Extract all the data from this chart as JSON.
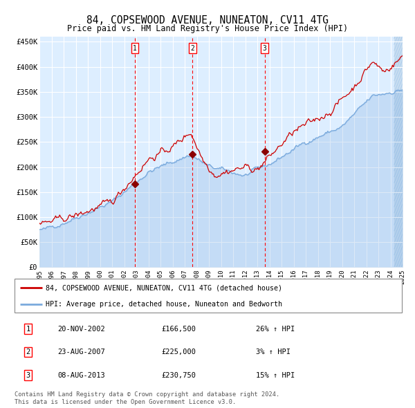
{
  "title": "84, COPSEWOOD AVENUE, NUNEATON, CV11 4TG",
  "subtitle": "Price paid vs. HM Land Registry's House Price Index (HPI)",
  "legend_line1": "84, COPSEWOOD AVENUE, NUNEATON, CV11 4TG (detached house)",
  "legend_line2": "HPI: Average price, detached house, Nuneaton and Bedworth",
  "footnote1": "Contains HM Land Registry data © Crown copyright and database right 2024.",
  "footnote2": "This data is licensed under the Open Government Licence v3.0.",
  "hpi_color": "#7aaadd",
  "price_color": "#cc0000",
  "background_plot": "#ddeeff",
  "grid_color": "#ffffff",
  "purchases": [
    {
      "date_str": "20-NOV-2002",
      "date_x": 2002.88,
      "price": 166500,
      "label": "1",
      "pct": "26%",
      "dir": "↑"
    },
    {
      "date_str": "23-AUG-2007",
      "date_x": 2007.64,
      "price": 225000,
      "label": "2",
      "pct": "3%",
      "dir": "↑"
    },
    {
      "date_str": "08-AUG-2013",
      "date_x": 2013.6,
      "price": 230750,
      "label": "3",
      "pct": "15%",
      "dir": "↑"
    }
  ],
  "ylim": [
    0,
    460000
  ],
  "xlim_start": 1995,
  "xlim_end": 2025,
  "yticks": [
    0,
    50000,
    100000,
    150000,
    200000,
    250000,
    300000,
    350000,
    400000,
    450000
  ],
  "ytick_labels": [
    "£0",
    "£50K",
    "£100K",
    "£150K",
    "£200K",
    "£250K",
    "£300K",
    "£350K",
    "£400K",
    "£450K"
  ],
  "xticks": [
    1995,
    1996,
    1997,
    1998,
    1999,
    2000,
    2001,
    2002,
    2003,
    2004,
    2005,
    2006,
    2007,
    2008,
    2009,
    2010,
    2011,
    2012,
    2013,
    2014,
    2015,
    2016,
    2017,
    2018,
    2019,
    2020,
    2021,
    2022,
    2023,
    2024,
    2025
  ]
}
